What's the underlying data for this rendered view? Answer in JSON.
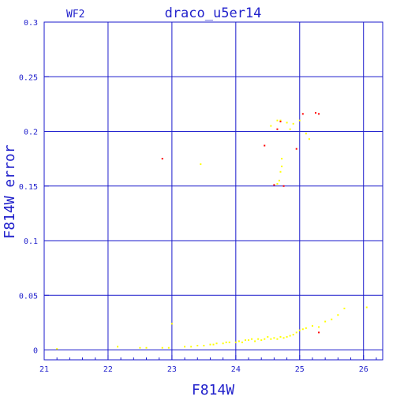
{
  "chart_data": {
    "type": "scatter",
    "title": "draco_u5er14",
    "panel_label": "WF2",
    "xlabel": "F814W",
    "ylabel": "F814W error",
    "xlim": [
      21,
      26.3
    ],
    "ylim": [
      -0.009,
      0.3
    ],
    "grid": true,
    "x_ticks": [
      21,
      22,
      23,
      24,
      25,
      26
    ],
    "x_tick_labels": [
      "21",
      "22",
      "23",
      "24",
      "25",
      "26"
    ],
    "y_ticks": [
      0,
      0.05,
      0.1,
      0.15,
      0.2,
      0.25,
      0.3
    ],
    "y_tick_labels": [
      "0",
      "0.05",
      "0.1",
      "0.15",
      "0.2",
      "0.25",
      "0.3"
    ],
    "colors": {
      "frame": "#1a1acc",
      "text": "#2222cc",
      "yellow_points": "#ffff00",
      "red_points": "#ff0000"
    },
    "series": [
      {
        "color": "#ffff00",
        "points": [
          [
            21.2,
            0.001
          ],
          [
            22.15,
            0.003
          ],
          [
            22.5,
            0.002
          ],
          [
            22.6,
            0.002
          ],
          [
            22.85,
            0.002
          ],
          [
            22.95,
            0.002
          ],
          [
            23.0,
            0.024
          ],
          [
            23.2,
            0.003
          ],
          [
            23.3,
            0.003
          ],
          [
            23.4,
            0.004
          ],
          [
            23.5,
            0.004
          ],
          [
            23.6,
            0.005
          ],
          [
            23.65,
            0.005
          ],
          [
            23.7,
            0.006
          ],
          [
            23.8,
            0.006
          ],
          [
            23.85,
            0.007
          ],
          [
            23.9,
            0.007
          ],
          [
            24.0,
            0.007
          ],
          [
            24.05,
            0.008
          ],
          [
            24.1,
            0.007
          ],
          [
            24.15,
            0.009
          ],
          [
            24.2,
            0.009
          ],
          [
            24.25,
            0.01
          ],
          [
            24.3,
            0.008
          ],
          [
            24.35,
            0.01
          ],
          [
            24.4,
            0.009
          ],
          [
            24.45,
            0.01
          ],
          [
            24.5,
            0.012
          ],
          [
            24.55,
            0.01
          ],
          [
            24.6,
            0.011
          ],
          [
            24.65,
            0.01
          ],
          [
            24.7,
            0.012
          ],
          [
            24.75,
            0.011
          ],
          [
            24.8,
            0.012
          ],
          [
            24.85,
            0.013
          ],
          [
            24.9,
            0.014
          ],
          [
            24.95,
            0.016
          ],
          [
            25.0,
            0.018
          ],
          [
            25.05,
            0.019
          ],
          [
            25.1,
            0.02
          ],
          [
            25.2,
            0.022
          ],
          [
            25.3,
            0.021
          ],
          [
            25.4,
            0.026
          ],
          [
            25.5,
            0.028
          ],
          [
            25.6,
            0.032
          ],
          [
            25.7,
            0.038
          ],
          [
            26.05,
            0.039
          ],
          [
            23.45,
            0.17
          ],
          [
            24.55,
            0.205
          ],
          [
            24.65,
            0.21
          ],
          [
            24.7,
            0.21
          ],
          [
            24.8,
            0.208
          ],
          [
            24.85,
            0.202
          ],
          [
            24.9,
            0.207
          ],
          [
            25.0,
            0.21
          ],
          [
            25.1,
            0.198
          ],
          [
            25.15,
            0.193
          ],
          [
            24.72,
            0.175
          ],
          [
            24.72,
            0.168
          ],
          [
            24.7,
            0.163
          ],
          [
            24.68,
            0.155
          ],
          [
            24.65,
            0.152
          ]
        ]
      },
      {
        "color": "#ff0000",
        "points": [
          [
            22.85,
            0.175
          ],
          [
            24.45,
            0.187
          ],
          [
            24.6,
            0.151
          ],
          [
            24.65,
            0.202
          ],
          [
            24.7,
            0.209
          ],
          [
            24.75,
            0.15
          ],
          [
            24.95,
            0.184
          ],
          [
            25.05,
            0.216
          ],
          [
            25.25,
            0.217
          ],
          [
            25.3,
            0.216
          ],
          [
            25.3,
            0.016
          ]
        ]
      }
    ]
  }
}
